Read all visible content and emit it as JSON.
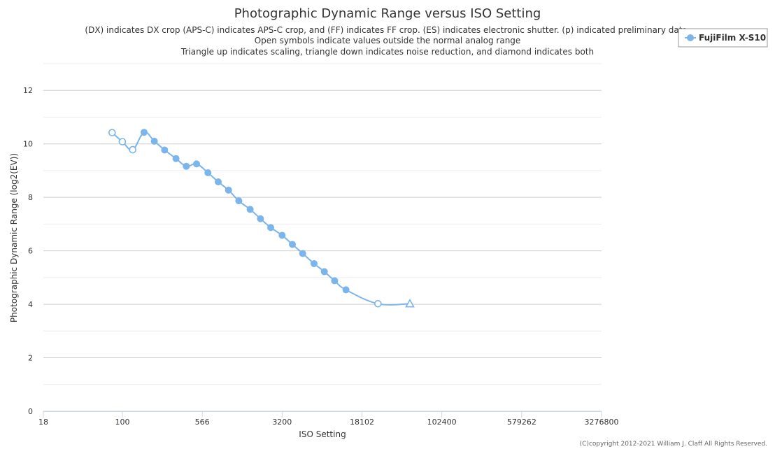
{
  "chart_data": {
    "type": "line",
    "title": "Photographic Dynamic Range versus ISO Setting",
    "subtitle": [
      "(DX) indicates DX crop (APS-C) indicates APS-C crop, and (FF) indicates FF crop. (ES) indicates electronic shutter. (p) indicated preliminary data.",
      "Open symbols indicate values outside the normal analog range",
      "Triangle up indicates scaling, triangle down indicates noise reduction, and diamond indicates both"
    ],
    "xlabel": "ISO Setting",
    "ylabel": "Photographic Dynamic Range (log2(EV))",
    "x_scale": "log",
    "xlim": [
      18,
      3276800
    ],
    "ylim": [
      0,
      13
    ],
    "x_ticks": [
      18,
      100,
      566,
      3200,
      18102,
      102400,
      579262,
      3276800
    ],
    "y_ticks": [
      0,
      2,
      4,
      6,
      8,
      10,
      12
    ],
    "grid": true,
    "legend_position": "top-right",
    "credits": "(C)copyright 2012-2021 William J. Claff All Rights Reserved.",
    "colors": {
      "series": "#7cb5ec",
      "grid": "#e6e6e6",
      "axis": "#ccd6eb"
    },
    "series": [
      {
        "name": "FujiFilm X-S10",
        "points": [
          {
            "x": 80,
            "y": 10.42,
            "marker": "open-circle"
          },
          {
            "x": 100,
            "y": 10.08,
            "marker": "open-circle"
          },
          {
            "x": 125,
            "y": 9.78,
            "marker": "open-circle"
          },
          {
            "x": 160,
            "y": 10.43,
            "marker": "circle"
          },
          {
            "x": 200,
            "y": 10.1,
            "marker": "circle"
          },
          {
            "x": 250,
            "y": 9.77,
            "marker": "circle"
          },
          {
            "x": 320,
            "y": 9.45,
            "marker": "circle"
          },
          {
            "x": 400,
            "y": 9.16,
            "marker": "circle"
          },
          {
            "x": 500,
            "y": 9.25,
            "marker": "circle"
          },
          {
            "x": 640,
            "y": 8.92,
            "marker": "circle"
          },
          {
            "x": 800,
            "y": 8.58,
            "marker": "circle"
          },
          {
            "x": 1000,
            "y": 8.27,
            "marker": "circle"
          },
          {
            "x": 1250,
            "y": 7.87,
            "marker": "circle"
          },
          {
            "x": 1600,
            "y": 7.55,
            "marker": "circle"
          },
          {
            "x": 2000,
            "y": 7.2,
            "marker": "circle"
          },
          {
            "x": 2500,
            "y": 6.87,
            "marker": "circle"
          },
          {
            "x": 3200,
            "y": 6.58,
            "marker": "circle"
          },
          {
            "x": 4000,
            "y": 6.24,
            "marker": "circle"
          },
          {
            "x": 5000,
            "y": 5.9,
            "marker": "circle"
          },
          {
            "x": 6400,
            "y": 5.52,
            "marker": "circle"
          },
          {
            "x": 8000,
            "y": 5.22,
            "marker": "circle"
          },
          {
            "x": 10000,
            "y": 4.88,
            "marker": "circle"
          },
          {
            "x": 12800,
            "y": 4.54,
            "marker": "circle"
          },
          {
            "x": 25600,
            "y": 4.02,
            "marker": "open-circle"
          },
          {
            "x": 51200,
            "y": 4.02,
            "marker": "open-triangle-up"
          }
        ]
      }
    ]
  }
}
